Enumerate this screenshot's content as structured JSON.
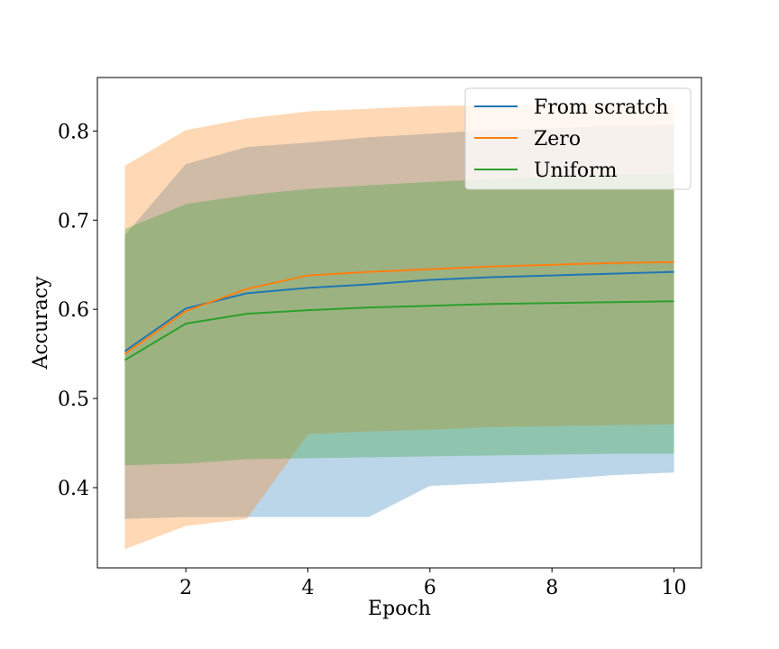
{
  "chart_data": {
    "type": "line",
    "title": "",
    "xlabel": "Epoch",
    "ylabel": "Accuracy",
    "xlim": [
      0.55,
      10.45
    ],
    "ylim": [
      0.31,
      0.86
    ],
    "xticks": [
      2,
      4,
      6,
      8,
      10
    ],
    "yticks": [
      0.4,
      0.5,
      0.6,
      0.7,
      0.8
    ],
    "ytick_labels": [
      "0.4",
      "0.5",
      "0.6",
      "0.7",
      "0.8"
    ],
    "grid": false,
    "legend_position": "top-right",
    "x": [
      1,
      2,
      3,
      4,
      5,
      6,
      7,
      8,
      9,
      10
    ],
    "series": [
      {
        "name": "From scratch",
        "color": "#1f77b4",
        "values": [
          0.553,
          0.601,
          0.618,
          0.624,
          0.628,
          0.633,
          0.636,
          0.638,
          0.64,
          0.642
        ],
        "band_low": [
          0.365,
          0.367,
          0.367,
          0.367,
          0.367,
          0.402,
          0.405,
          0.409,
          0.414,
          0.417
        ],
        "band_high": [
          0.683,
          0.763,
          0.782,
          0.787,
          0.793,
          0.797,
          0.801,
          0.803,
          0.806,
          0.807
        ]
      },
      {
        "name": "Zero",
        "color": "#ff7f0e",
        "values": [
          0.55,
          0.598,
          0.623,
          0.638,
          0.642,
          0.645,
          0.648,
          0.65,
          0.652,
          0.653
        ],
        "band_low": [
          0.331,
          0.357,
          0.365,
          0.46,
          0.463,
          0.465,
          0.468,
          0.469,
          0.47,
          0.471
        ],
        "band_high": [
          0.761,
          0.801,
          0.814,
          0.822,
          0.825,
          0.828,
          0.829,
          0.83,
          0.831,
          0.831
        ]
      },
      {
        "name": "Uniform",
        "color": "#2ca02c",
        "values": [
          0.543,
          0.584,
          0.595,
          0.599,
          0.602,
          0.604,
          0.606,
          0.607,
          0.608,
          0.609
        ],
        "band_low": [
          0.425,
          0.427,
          0.432,
          0.433,
          0.434,
          0.435,
          0.436,
          0.437,
          0.438,
          0.438
        ],
        "band_high": [
          0.69,
          0.718,
          0.728,
          0.735,
          0.739,
          0.743,
          0.746,
          0.749,
          0.751,
          0.752
        ]
      }
    ]
  }
}
